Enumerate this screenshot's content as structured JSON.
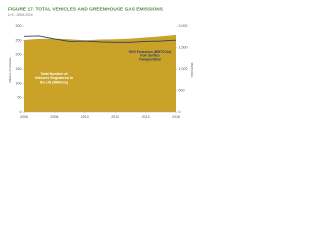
{
  "chart_data": {
    "type": "combo",
    "title": "FIGURE 17. TOTAL VEHICLES AND GREENHOUSE GAS EMISSIONS",
    "subtitle": "U.S., 2006-2016",
    "y_label": "Millions of Vehicles",
    "y2_label": "MMTCO2e",
    "x": [
      2006,
      2007,
      2008,
      2009,
      2010,
      2011,
      2012,
      2013,
      2014,
      2015,
      2016
    ],
    "xlim": [
      2006,
      2016
    ],
    "xticks": [
      2006,
      2008,
      2010,
      2012,
      2014,
      2016
    ],
    "ylim": [
      0,
      300
    ],
    "yticks": [
      0,
      50,
      100,
      150,
      200,
      250,
      300
    ],
    "y2lim": [
      0,
      2000
    ],
    "y2ticks": [
      0,
      500,
      {
        "value": 1000,
        "label": "1,000"
      },
      {
        "value": 1500,
        "label": "1,500"
      },
      {
        "value": 2000,
        "label": "2,000"
      }
    ],
    "series": [
      {
        "name": "Total Number of Vehicles Registered in the US (Millions)",
        "style": "area",
        "color": "#c9a227",
        "values": [
          251,
          255,
          256,
          254,
          250,
          253,
          254,
          256,
          260,
          264,
          269
        ]
      },
      {
        "name": "GHG Emissions (MMTCO2e) from Surface Transportation",
        "style": "line",
        "axis": "y2",
        "color": "#2b3f6b",
        "values": [
          1760,
          1770,
          1700,
          1640,
          1650,
          1630,
          1620,
          1620,
          1640,
          1650,
          1670
        ]
      }
    ]
  }
}
